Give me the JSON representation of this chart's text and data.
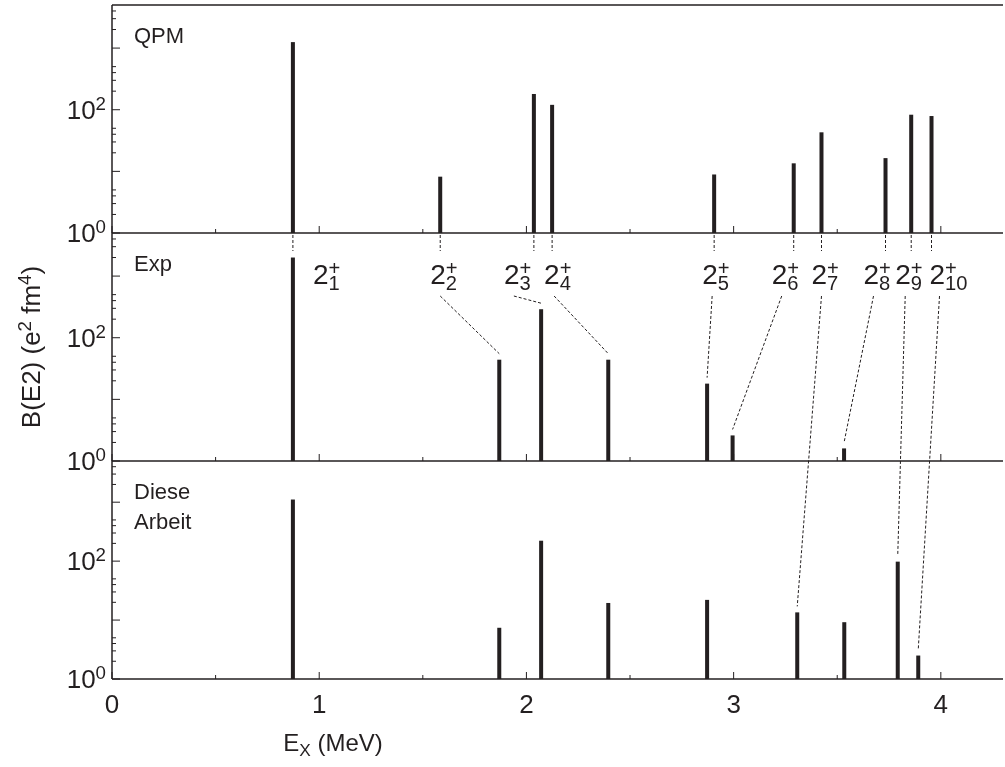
{
  "chart_data": [
    {
      "type": "bar",
      "title": "QPM",
      "x": [
        0.873,
        1.584,
        2.036,
        2.124,
        2.906,
        3.29,
        3.424,
        3.733,
        3.857,
        3.955
      ],
      "series": [
        {
          "color": "#231f20",
          "values": [
            1250,
            8.2,
            180,
            120,
            8.9,
            13.5,
            43,
            16.4,
            83,
            79
          ]
        }
      ],
      "xlim": [
        0,
        4.3
      ],
      "xticks": [
        0,
        {
          "value": 0.5,
          "label": null
        },
        1,
        {
          "value": 1.5,
          "label": null
        },
        2,
        {
          "value": 2.5,
          "label": null
        },
        3,
        {
          "value": 3.5,
          "label": null
        },
        4
      ],
      "ylim": [
        1,
        5000
      ],
      "yticks": [
        {
          "value": 1,
          "label": "10$^{0}$"
        },
        {
          "value": 2,
          "label": null
        },
        {
          "value": 3,
          "label": null
        },
        {
          "value": 4,
          "label": null
        },
        {
          "value": 5,
          "label": null
        },
        {
          "value": 10,
          "label": null
        },
        {
          "value": 20,
          "label": null
        },
        {
          "value": 30,
          "label": null
        },
        {
          "value": 40,
          "label": null
        },
        {
          "value": 50,
          "label": null
        },
        {
          "value": 100,
          "label": "10$^{2}$"
        },
        {
          "value": 200,
          "label": null
        },
        {
          "value": 300,
          "label": null
        },
        {
          "value": 400,
          "label": null
        },
        {
          "value": 500,
          "label": null
        },
        {
          "value": 1000,
          "label": null
        },
        {
          "value": 2000,
          "label": null
        },
        {
          "value": 3000,
          "label": null
        },
        {
          "value": 4000,
          "label": null
        }
      ],
      "log": true,
      "tick_labels": "y"
    },
    {
      "type": "bar",
      "title": "Exp",
      "ylabel": "B(E2) (e$^{2}$ fm$^{4}$)",
      "x": [
        0.873,
        1.869,
        2.071,
        2.395,
        2.872,
        2.995,
        3.533
      ],
      "series": [
        {
          "color": "#231f20",
          "values": [
            2000,
            44,
            290,
            44,
            18,
            2.6,
            1.6
          ]
        }
      ],
      "xlim": [
        0,
        4.3
      ],
      "xticks": [
        0,
        {
          "value": 0.5,
          "label": null
        },
        1,
        {
          "value": 1.5,
          "label": null
        },
        2,
        {
          "value": 2.5,
          "label": null
        },
        3,
        {
          "value": 3.5,
          "label": null
        },
        4
      ],
      "ylim": [
        1,
        5000
      ],
      "yticks": [
        {
          "value": 1,
          "label": "10$^{0}$"
        },
        {
          "value": 2,
          "label": null
        },
        {
          "value": 3,
          "label": null
        },
        {
          "value": 4,
          "label": null
        },
        {
          "value": 5,
          "label": null
        },
        {
          "value": 10,
          "label": null
        },
        {
          "value": 20,
          "label": null
        },
        {
          "value": 30,
          "label": null
        },
        {
          "value": 40,
          "label": null
        },
        {
          "value": 50,
          "label": null
        },
        {
          "value": 100,
          "label": "10$^{2}$"
        },
        {
          "value": 200,
          "label": null
        },
        {
          "value": 300,
          "label": null
        },
        {
          "value": 400,
          "label": null
        },
        {
          "value": 500,
          "label": null
        },
        {
          "value": 1000,
          "label": null
        },
        {
          "value": 2000,
          "label": null
        },
        {
          "value": 3000,
          "label": null
        },
        {
          "value": 4000,
          "label": null
        }
      ],
      "log": true,
      "tick_labels": "y",
      "annotations": [
        "2$_{1}$$^{+}$",
        "2$_{2}$$^{+}$",
        "2$_{3}$$^{+}$",
        "2$_{4}$$^{+}$",
        "2$_{5}$$^{+}$",
        "2$_{6}$$^{+}$",
        "2$_{7}$$^{+}$",
        "2$_{8}$$^{+}$",
        "2$_{9}$$^{+}$",
        "2$_{10}$$^{+}$"
      ]
    },
    {
      "type": "bar",
      "title": "Diese Arbeit",
      "xlabel": "E$_{X}$ (MeV)",
      "x": [
        0.873,
        1.869,
        2.071,
        2.395,
        2.872,
        3.307,
        3.534,
        3.792,
        3.891
      ],
      "series": [
        {
          "color": "#231f20",
          "values": [
            1110,
            7.4,
            222,
            19.5,
            22,
            13.5,
            9.2,
            98,
            2.5
          ]
        }
      ],
      "xlim": [
        0,
        4.3
      ],
      "xticks": [
        0,
        {
          "value": 0.5,
          "label": null
        },
        1,
        {
          "value": 1.5,
          "label": null
        },
        2,
        {
          "value": 2.5,
          "label": null
        },
        3,
        {
          "value": 3.5,
          "label": null
        },
        4
      ],
      "ylim": [
        1,
        5000
      ],
      "yticks": [
        {
          "value": 1,
          "label": "10$^{0}$"
        },
        {
          "value": 2,
          "label": null
        },
        {
          "value": 3,
          "label": null
        },
        {
          "value": 4,
          "label": null
        },
        {
          "value": 5,
          "label": null
        },
        {
          "value": 10,
          "label": null
        },
        {
          "value": 20,
          "label": null
        },
        {
          "value": 30,
          "label": null
        },
        {
          "value": 40,
          "label": null
        },
        {
          "value": 50,
          "label": null
        },
        {
          "value": 100,
          "label": "10$^{2}$"
        },
        {
          "value": 200,
          "label": null
        },
        {
          "value": 300,
          "label": null
        },
        {
          "value": 400,
          "label": null
        },
        {
          "value": 500,
          "label": null
        },
        {
          "value": 1000,
          "label": null
        },
        {
          "value": 2000,
          "label": null
        },
        {
          "value": 3000,
          "label": null
        },
        {
          "value": 4000,
          "label": null
        }
      ],
      "log": true
    }
  ]
}
